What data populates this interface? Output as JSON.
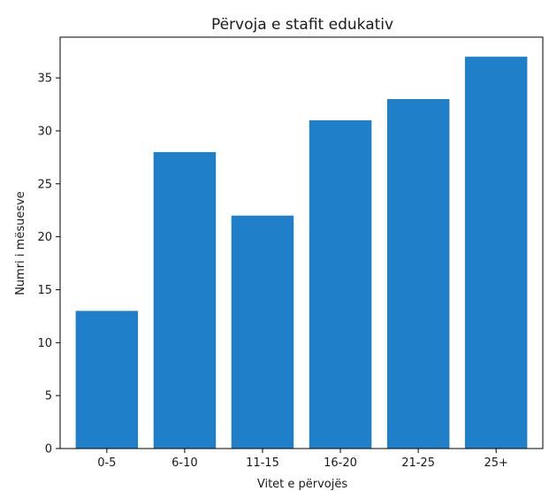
{
  "chart_data": {
    "type": "bar",
    "title": "Përvoja e stafit edukativ",
    "xlabel": "Vitet e përvojës",
    "ylabel": "Numri i mësuesve",
    "categories": [
      "0-5",
      "6-10",
      "11-15",
      "16-20",
      "21-25",
      "25+"
    ],
    "values": [
      13,
      28,
      22,
      31,
      33,
      37
    ],
    "ylim": [
      0,
      38.85
    ],
    "yticks": [
      0,
      5,
      10,
      15,
      20,
      25,
      30,
      35
    ],
    "bar_color": "#1f7fc9",
    "grid": false,
    "legend": "none"
  }
}
